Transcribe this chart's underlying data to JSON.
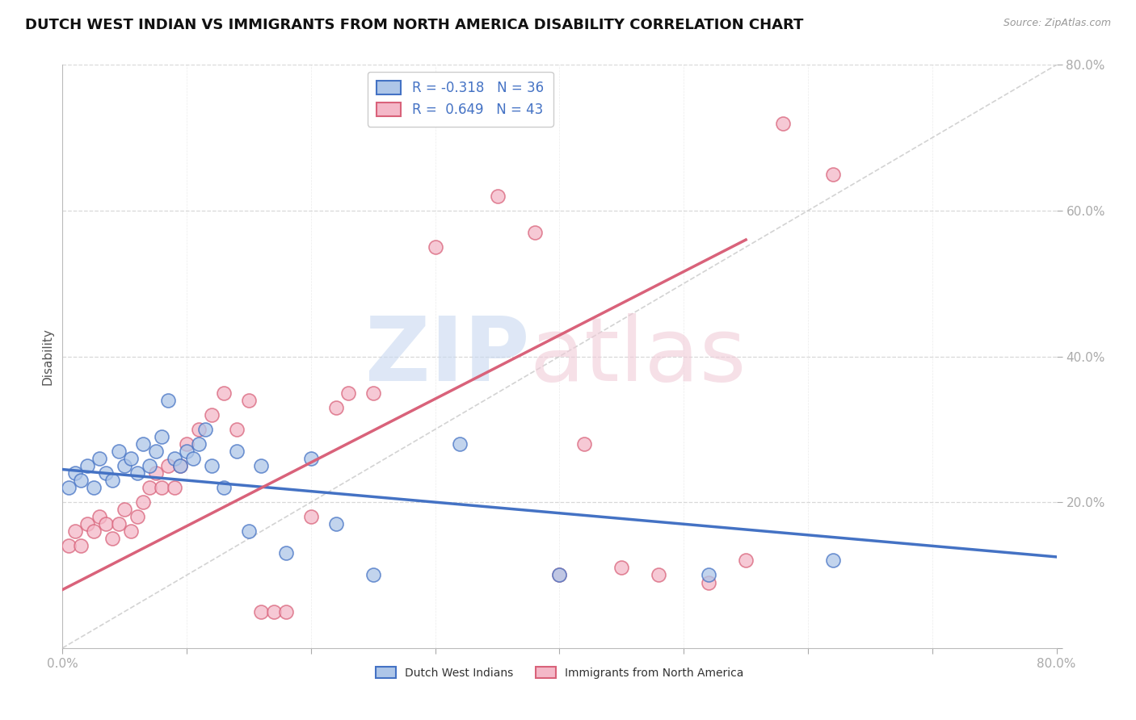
{
  "title": "DUTCH WEST INDIAN VS IMMIGRANTS FROM NORTH AMERICA DISABILITY CORRELATION CHART",
  "source": "Source: ZipAtlas.com",
  "ylabel": "Disability",
  "legend_blue_label": "R = -0.318   N = 36",
  "legend_pink_label": "R =  0.649   N = 43",
  "label_blue": "Dutch West Indians",
  "label_pink": "Immigrants from North America",
  "blue_color": "#aec6e8",
  "pink_color": "#f4b8c8",
  "blue_line_color": "#4472c4",
  "pink_line_color": "#d9627a",
  "diag_line_color": "#c8c8c8",
  "blue_x": [
    0.5,
    1.0,
    1.5,
    2.0,
    2.5,
    3.0,
    3.5,
    4.0,
    4.5,
    5.0,
    5.5,
    6.0,
    6.5,
    7.0,
    7.5,
    8.0,
    8.5,
    9.0,
    9.5,
    10.0,
    10.5,
    11.0,
    11.5,
    12.0,
    13.0,
    14.0,
    15.0,
    16.0,
    18.0,
    20.0,
    22.0,
    25.0,
    32.0,
    40.0,
    52.0,
    62.0
  ],
  "blue_y": [
    22.0,
    24.0,
    23.0,
    25.0,
    22.0,
    26.0,
    24.0,
    23.0,
    27.0,
    25.0,
    26.0,
    24.0,
    28.0,
    25.0,
    27.0,
    29.0,
    34.0,
    26.0,
    25.0,
    27.0,
    26.0,
    28.0,
    30.0,
    25.0,
    22.0,
    27.0,
    16.0,
    25.0,
    13.0,
    26.0,
    17.0,
    10.0,
    28.0,
    10.0,
    10.0,
    12.0
  ],
  "pink_x": [
    0.5,
    1.0,
    1.5,
    2.0,
    2.5,
    3.0,
    3.5,
    4.0,
    4.5,
    5.0,
    5.5,
    6.0,
    6.5,
    7.0,
    7.5,
    8.0,
    8.5,
    9.0,
    9.5,
    10.0,
    11.0,
    12.0,
    13.0,
    14.0,
    15.0,
    16.0,
    17.0,
    18.0,
    20.0,
    22.0,
    23.0,
    25.0,
    30.0,
    35.0,
    38.0,
    40.0,
    42.0,
    45.0,
    48.0,
    52.0,
    55.0,
    58.0,
    62.0
  ],
  "pink_y": [
    14.0,
    16.0,
    14.0,
    17.0,
    16.0,
    18.0,
    17.0,
    15.0,
    17.0,
    19.0,
    16.0,
    18.0,
    20.0,
    22.0,
    24.0,
    22.0,
    25.0,
    22.0,
    25.0,
    28.0,
    30.0,
    32.0,
    35.0,
    30.0,
    34.0,
    5.0,
    5.0,
    5.0,
    18.0,
    33.0,
    35.0,
    35.0,
    55.0,
    62.0,
    57.0,
    10.0,
    28.0,
    11.0,
    10.0,
    9.0,
    12.0,
    72.0,
    65.0
  ],
  "blue_line_x0": 0,
  "blue_line_y0": 24.5,
  "blue_line_x1": 80,
  "blue_line_y1": 12.5,
  "pink_line_x0": 0,
  "pink_line_y0": 8.0,
  "pink_line_x1": 55,
  "pink_line_y1": 56.0,
  "xlim": [
    0,
    80
  ],
  "ylim": [
    0,
    80
  ],
  "xticks": [
    0,
    10,
    20,
    30,
    40,
    50,
    60,
    70,
    80
  ],
  "yticks": [
    0,
    20,
    40,
    60,
    80
  ],
  "grid_yticks": [
    20,
    40,
    60,
    80
  ],
  "grid_color": "#d8d8d8",
  "background_color": "#ffffff",
  "title_fontsize": 13,
  "axis_fontsize": 11,
  "legend_fontsize": 12
}
